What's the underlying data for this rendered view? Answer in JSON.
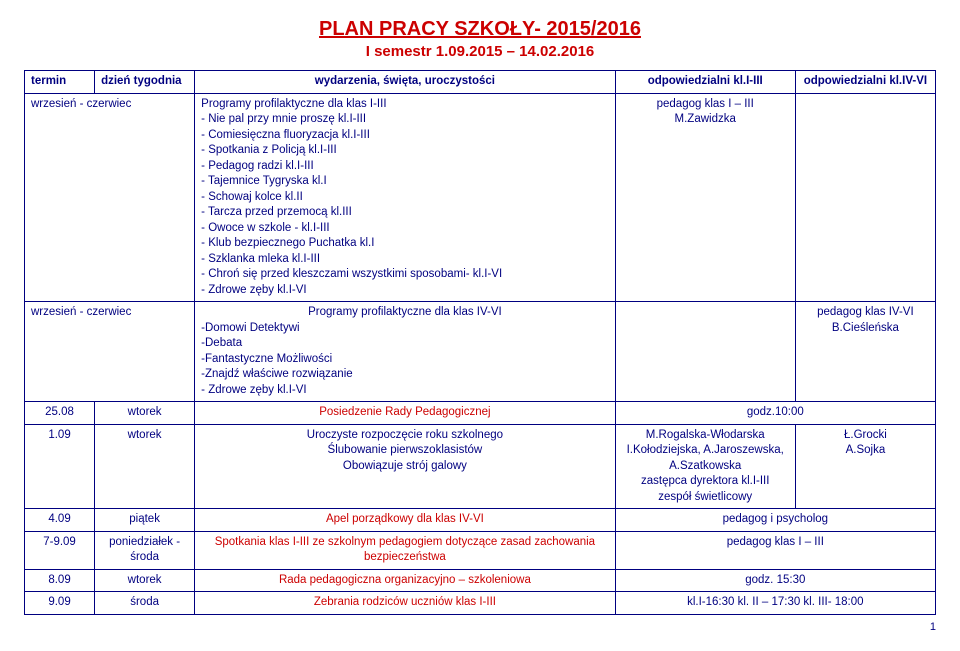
{
  "title": "PLAN PRACY SZKOŁY- 2015/2016",
  "subtitle": "I semestr  1.09.2015 – 14.02.2016",
  "headers": {
    "termin": "termin",
    "dzien": "dzień tygodnia",
    "wyd": "wydarzenia, święta, uroczystości",
    "odp1": "odpowiedzialni kl.I-III",
    "odp2": "odpowiedzialni kl.IV-VI"
  },
  "rows": {
    "r0": {
      "termin": "wrzesień - czerwiec",
      "wyd": "Programy profilaktyczne dla klas I-III\n- Nie pal przy mnie proszę kl.I-III\n- Comiesięczna fluoryzacja kl.I-III\n- Spotkania z Policją kl.I-III\n - Pedagog radzi kl.I-III\n- Tajemnice Tygryska kl.I\n- Schowaj kolce kl.II\n- Tarcza przed przemocą kl.III\n- Owoce w szkole - kl.I-III\n- Klub bezpiecznego Puchatka kl.I\n- Szklanka mleka kl.I-III\n- Chroń się przed kleszczami wszystkimi sposobami- kl.I-VI\n- Zdrowe zęby kl.I-VI",
      "odp1": "pedagog klas I – III\nM.Zawidzka"
    },
    "r1": {
      "termin": "wrzesień - czerwiec",
      "wyd_heading": "Programy profilaktyczne dla klas IV-VI",
      "wyd_rest": "-Domowi Detektywi\n-Debata\n-Fantastyczne Możliwości\n-Znajdź właściwe rozwiązanie\n- Zdrowe zęby kl.I-VI",
      "odp2": "pedagog klas IV-VI\nB.Cieśleńska"
    },
    "r2": {
      "termin": "25.08",
      "dzien": "wtorek",
      "wyd": "Posiedzenie Rady Pedagogicznej",
      "odp1": "godz.10:00"
    },
    "r3": {
      "termin": "1.09",
      "dzien": "wtorek",
      "wyd": "Uroczyste rozpoczęcie roku szkolnego\nŚlubowanie pierwszoklasistów\nObowiązuje strój galowy",
      "odp1": "M.Rogalska-Włodarska\nI.Kołodziejska, A.Jaroszewska,\nA.Szatkowska\nzastępca dyrektora kl.I-III\nzespół świetlicowy",
      "odp2": "Ł.Grocki\nA.Sojka"
    },
    "r4": {
      "termin": "4.09",
      "dzien": "piątek",
      "wyd": "Apel porządkowy dla klas IV-VI",
      "odp": "pedagog i psycholog"
    },
    "r5": {
      "termin": "7-9.09",
      "dzien": "poniedziałek - środa",
      "wyd": "Spotkania klas I-III ze szkolnym pedagogiem  dotyczące zasad zachowania bezpieczeństwa",
      "odp": "pedagog klas I – III"
    },
    "r6": {
      "termin": "8.09",
      "dzien": "wtorek",
      "wyd": "Rada pedagogiczna  organizacyjno – szkoleniowa",
      "odp": "godz. 15:30"
    },
    "r7": {
      "termin": "9.09",
      "dzien": "środa",
      "wyd": "Zebrania rodziców uczniów klas I-III",
      "odp": "kl.I-16:30    kl. II – 17:30  kl. III- 18:00"
    }
  },
  "pagenum": "1"
}
